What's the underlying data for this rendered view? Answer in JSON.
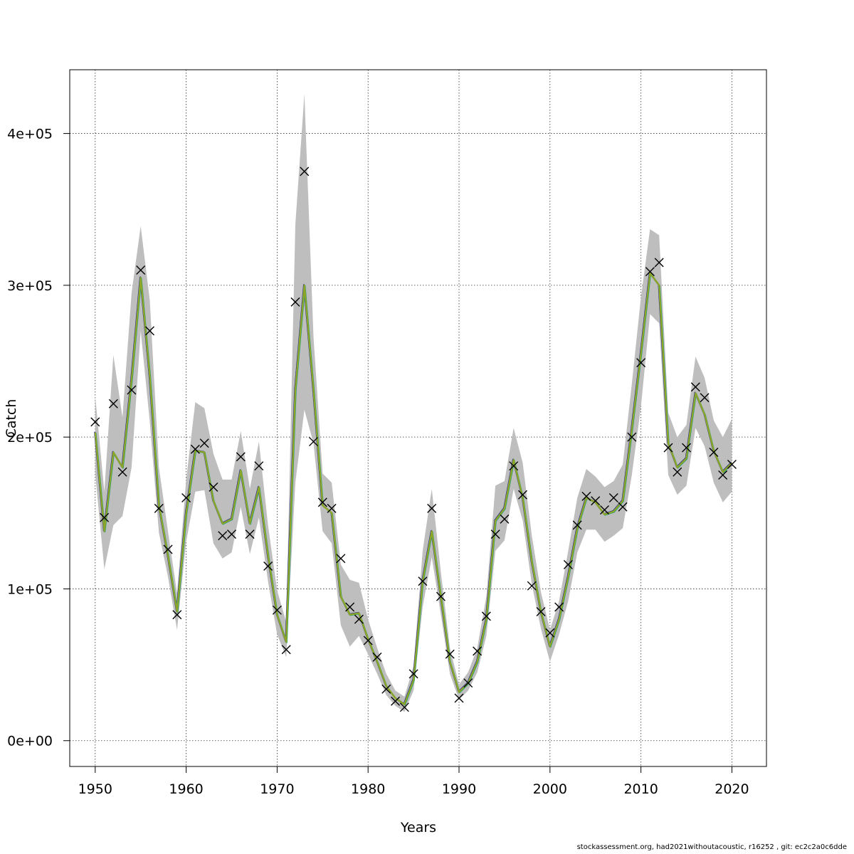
{
  "chart_data": {
    "type": "line",
    "title": "",
    "xlabel": "Years",
    "ylabel": "Catch",
    "xlim": [
      1947.2,
      2023.8
    ],
    "ylim": [
      -17000,
      442000
    ],
    "x_ticks": [
      1950,
      1960,
      1970,
      1980,
      1990,
      2000,
      2010,
      2020
    ],
    "x_tick_labels": [
      "1950",
      "1960",
      "1970",
      "1980",
      "1990",
      "2000",
      "2010",
      "2020"
    ],
    "y_ticks": [
      0,
      100000,
      200000,
      300000,
      400000
    ],
    "y_tick_labels": [
      "0e+00",
      "1e+05",
      "2e+05",
      "3e+05",
      "4e+05"
    ],
    "grid": true,
    "colors": {
      "band": "#bebebe",
      "fit": "#8da627",
      "fit_variants": [
        "#1f1f8f",
        "#3b8fd1",
        "#1a9e77"
      ],
      "observed_marker": "#000000"
    },
    "observed": {
      "marker": "x",
      "x": [
        1950,
        1951,
        1952,
        1953,
        1954,
        1955,
        1956,
        1957,
        1958,
        1959,
        1960,
        1961,
        1962,
        1963,
        1964,
        1965,
        1966,
        1967,
        1968,
        1969,
        1970,
        1971,
        1972,
        1973,
        1974,
        1975,
        1976,
        1977,
        1978,
        1979,
        1980,
        1981,
        1982,
        1983,
        1984,
        1985,
        1986,
        1987,
        1988,
        1989,
        1990,
        1991,
        1992,
        1993,
        1994,
        1995,
        1996,
        1997,
        1998,
        1999,
        2000,
        2001,
        2002,
        2003,
        2004,
        2005,
        2006,
        2007,
        2008,
        2009,
        2010,
        2011,
        2012,
        2013,
        2014,
        2015,
        2016,
        2017,
        2018,
        2019,
        2020
      ],
      "y": [
        210000,
        147000,
        222000,
        177000,
        231000,
        310000,
        270000,
        153000,
        126000,
        83000,
        160000,
        192000,
        196000,
        167000,
        135000,
        136000,
        187000,
        136000,
        181000,
        115000,
        86000,
        60000,
        289000,
        375000,
        197000,
        157000,
        153000,
        120000,
        88000,
        80000,
        66000,
        55000,
        34000,
        26000,
        22000,
        44000,
        105000,
        153000,
        95000,
        57000,
        28000,
        38000,
        59000,
        82000,
        136000,
        146000,
        181000,
        162000,
        102000,
        85000,
        71000,
        88000,
        116000,
        142000,
        161000,
        158000,
        152000,
        160000,
        154000,
        200000,
        249000,
        309000,
        315000,
        193000,
        177000,
        193000,
        233000,
        226000,
        190000,
        175000,
        182000
      ]
    },
    "fit": {
      "x": [
        1950,
        1951,
        1952,
        1953,
        1954,
        1955,
        1956,
        1957,
        1958,
        1959,
        1960,
        1961,
        1962,
        1963,
        1964,
        1965,
        1966,
        1967,
        1968,
        1969,
        1970,
        1971,
        1972,
        1973,
        1974,
        1975,
        1976,
        1977,
        1978,
        1979,
        1980,
        1981,
        1982,
        1983,
        1984,
        1985,
        1986,
        1987,
        1988,
        1989,
        1990,
        1991,
        1992,
        1993,
        1994,
        1995,
        1996,
        1997,
        1998,
        1999,
        2000,
        2001,
        2002,
        2003,
        2004,
        2005,
        2006,
        2007,
        2008,
        2009,
        2010,
        2011,
        2012,
        2013,
        2014,
        2015,
        2016,
        2017,
        2018,
        2019,
        2020
      ],
      "y": [
        203000,
        138000,
        190000,
        180000,
        238000,
        305000,
        240000,
        155000,
        122000,
        85000,
        150000,
        191000,
        190000,
        158000,
        143000,
        146000,
        178000,
        143000,
        167000,
        122000,
        83000,
        65000,
        231000,
        300000,
        231000,
        155000,
        150000,
        95000,
        83000,
        84000,
        67000,
        52000,
        36000,
        28000,
        24000,
        40000,
        105000,
        138000,
        95000,
        52000,
        32000,
        38000,
        52000,
        80000,
        145000,
        153000,
        185000,
        160000,
        118000,
        85000,
        62000,
        80000,
        108000,
        140000,
        160000,
        157000,
        149000,
        151000,
        158000,
        205000,
        255000,
        308000,
        300000,
        196000,
        180000,
        186000,
        229000,
        215000,
        191000,
        177000,
        183000
      ],
      "lower": [
        176000,
        113000,
        142000,
        148000,
        180000,
        270000,
        210000,
        137000,
        108000,
        73000,
        131000,
        164000,
        165000,
        130000,
        120000,
        124000,
        154000,
        123000,
        147000,
        105000,
        70000,
        55000,
        170000,
        218000,
        196000,
        138000,
        130000,
        76000,
        62000,
        69000,
        57000,
        44000,
        30000,
        23000,
        19000,
        33000,
        88000,
        121000,
        83000,
        44000,
        27000,
        33000,
        45000,
        69000,
        125000,
        132000,
        166000,
        145000,
        103000,
        74000,
        52000,
        70000,
        92000,
        124000,
        139000,
        139000,
        131000,
        135000,
        140000,
        175000,
        220000,
        281000,
        275000,
        175000,
        162000,
        168000,
        206000,
        194000,
        170000,
        157000,
        164000
      ],
      "upper": [
        227000,
        164000,
        254000,
        213000,
        295000,
        339000,
        290000,
        180000,
        138000,
        97000,
        172000,
        223000,
        219000,
        189000,
        172000,
        172000,
        204000,
        166000,
        197000,
        142000,
        99000,
        78000,
        340000,
        426000,
        266000,
        176000,
        170000,
        116000,
        106000,
        104000,
        80000,
        61000,
        44000,
        33000,
        29000,
        49000,
        125000,
        166000,
        111000,
        61000,
        37000,
        45000,
        61000,
        95000,
        168000,
        171000,
        206000,
        183000,
        135000,
        98000,
        73000,
        92000,
        125000,
        160000,
        179000,
        174000,
        167000,
        171000,
        182000,
        235000,
        292000,
        337000,
        333000,
        216000,
        200000,
        208000,
        253000,
        239000,
        211000,
        200000,
        212000
      ]
    }
  },
  "footer": "stockassessment.org, had2021withoutacoustic, r16252 , git: ec2c2a0c6dde"
}
